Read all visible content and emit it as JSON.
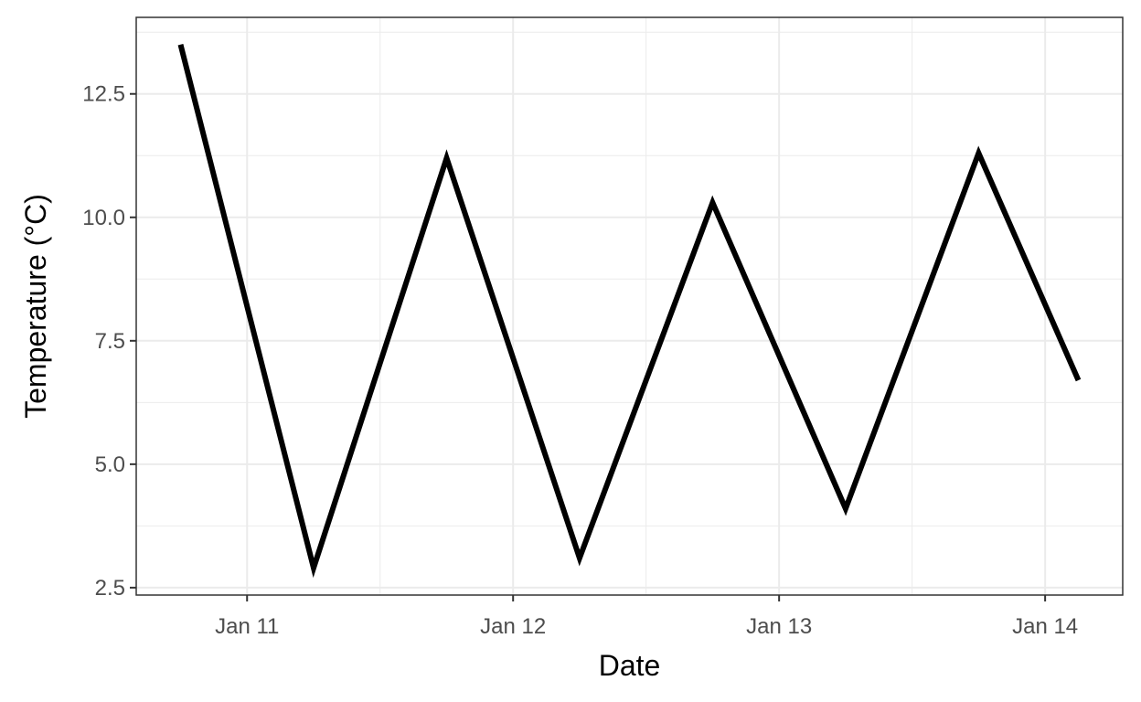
{
  "chart_data": {
    "type": "line",
    "title": "",
    "xlabel": "Date",
    "ylabel": "Temperature (°C)",
    "x_type": "datetime",
    "x": [
      "2000-01-10 18:00",
      "2000-01-11 06:00",
      "2000-01-11 18:00",
      "2000-01-12 06:00",
      "2000-01-12 18:00",
      "2000-01-13 06:00",
      "2000-01-13 18:00",
      "2000-01-14 03:00"
    ],
    "series": [
      {
        "values": [
          13.5,
          2.9,
          11.2,
          3.1,
          10.3,
          4.1,
          11.3,
          6.7
        ]
      }
    ],
    "xlim": [
      "2000-01-10 14:00",
      "2000-01-14 07:00"
    ],
    "ylim": [
      2.35,
      14.05
    ],
    "x_ticks": [
      {
        "value": "2000-01-11",
        "label": "Jan 11"
      },
      {
        "value": "2000-01-12",
        "label": "Jan 12"
      },
      {
        "value": "2000-01-13",
        "label": "Jan 13"
      },
      {
        "value": "2000-01-14",
        "label": "Jan 14"
      }
    ],
    "x_minor_ticks": [
      "2000-01-11 12:00",
      "2000-01-12 12:00",
      "2000-01-13 12:00"
    ],
    "y_ticks": [
      {
        "value": 2.5,
        "label": "2.5"
      },
      {
        "value": 5.0,
        "label": "5.0"
      },
      {
        "value": 7.5,
        "label": "7.5"
      },
      {
        "value": 10.0,
        "label": "10.0"
      },
      {
        "value": 12.5,
        "label": "12.5"
      }
    ],
    "y_minor_ticks": [
      3.75,
      6.25,
      8.75,
      11.25,
      13.75
    ],
    "grid": true,
    "legend": "none",
    "colors": {
      "line": "#000000",
      "grid": "#ebebeb",
      "panel_border": "#333333",
      "background": "#ffffff"
    }
  }
}
